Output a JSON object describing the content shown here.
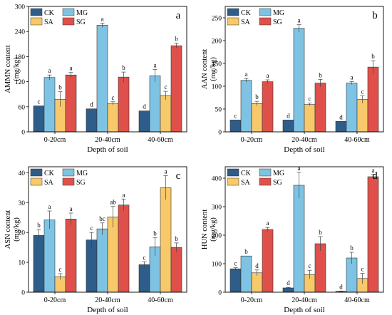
{
  "colors": {
    "CK": "#2f5d8a",
    "MG": "#7ec3e3",
    "SA": "#f7c96b",
    "SG": "#e0504a"
  },
  "chart_data": [
    {
      "type": "bar",
      "panel_letter": "a",
      "xlabel": "Depth of soil",
      "ylabel": "AMMN content",
      "ylabel_unit": "(mg/kg)",
      "categories": [
        "0-20cm",
        "20-40cm",
        "40-60cm"
      ],
      "ylim": [
        0,
        300
      ],
      "yticks": [
        0,
        60,
        120,
        180,
        240,
        300
      ],
      "legend_order": [
        "CK",
        "MG",
        "SA",
        "SG"
      ],
      "legend_position": "top-left",
      "grid": false,
      "series": [
        {
          "name": "CK",
          "values": [
            62,
            55,
            50
          ],
          "errors": [
            0,
            0,
            0
          ],
          "letters": [
            "c",
            "d",
            "d"
          ]
        },
        {
          "name": "MG",
          "values": [
            130,
            255,
            134
          ],
          "errors": [
            6,
            5,
            15
          ],
          "letters": [
            "a",
            "a",
            "a"
          ]
        },
        {
          "name": "SA",
          "values": [
            78,
            68,
            87
          ],
          "errors": [
            18,
            4,
            10
          ],
          "letters": [
            "b",
            "c",
            "c"
          ]
        },
        {
          "name": "SG",
          "values": [
            136,
            131,
            206
          ],
          "errors": [
            6,
            12,
            6
          ],
          "letters": [
            "a",
            "b",
            "b"
          ]
        }
      ]
    },
    {
      "type": "bar",
      "panel_letter": "b",
      "xlabel": "Depth of soil",
      "ylabel": "AAN content",
      "ylabel_unit": "(mg/kg)",
      "categories": [
        "0-20cm",
        "20-40cm",
        "40-60cm"
      ],
      "ylim": [
        0,
        275
      ],
      "yticks": [
        0,
        50,
        100,
        150,
        200,
        250
      ],
      "legend_order": [
        "CK",
        "MG",
        "SA",
        "SG"
      ],
      "legend_position": "top-left",
      "grid": false,
      "series": [
        {
          "name": "CK",
          "values": [
            26,
            26,
            23
          ],
          "errors": [
            0,
            0,
            0
          ],
          "letters": [
            "c",
            "d",
            "d"
          ]
        },
        {
          "name": "MG",
          "values": [
            113,
            227,
            107
          ],
          "errors": [
            4,
            8,
            3
          ],
          "letters": [
            "a",
            "a",
            "a"
          ]
        },
        {
          "name": "SA",
          "values": [
            62,
            60,
            71
          ],
          "errors": [
            5,
            3,
            8
          ],
          "letters": [
            "b",
            "c",
            "c"
          ]
        },
        {
          "name": "SG",
          "values": [
            110,
            107,
            142
          ],
          "errors": [
            4,
            8,
            14
          ],
          "letters": [
            "a",
            "b",
            "b"
          ]
        }
      ]
    },
    {
      "type": "bar",
      "panel_letter": "c",
      "xlabel": "Depth of soil",
      "ylabel": "ASN content",
      "ylabel_unit": "(mg/kg)",
      "categories": [
        "0-20cm",
        "20-40cm",
        "40-60cm"
      ],
      "ylim": [
        0,
        42
      ],
      "yticks": [
        0,
        10,
        20,
        30,
        40
      ],
      "legend_order": [
        "CK",
        "MG",
        "SA",
        "SG"
      ],
      "legend_position": "top-left",
      "grid": false,
      "series": [
        {
          "name": "CK",
          "values": [
            19,
            17.5,
            9.2
          ],
          "errors": [
            2,
            2.5,
            1
          ],
          "letters": [
            "b",
            "c",
            "c"
          ]
        },
        {
          "name": "MG",
          "values": [
            24.2,
            21.2,
            15.2
          ],
          "errors": [
            3,
            2,
            3
          ],
          "letters": [
            "a",
            "bc",
            "b"
          ]
        },
        {
          "name": "SA",
          "values": [
            5.2,
            25.2,
            35
          ],
          "errors": [
            1,
            3.5,
            4
          ],
          "letters": [
            "c",
            "ab",
            "a"
          ]
        },
        {
          "name": "SG",
          "values": [
            24.5,
            29.2,
            15
          ],
          "errors": [
            2,
            2,
            1.5
          ],
          "letters": [
            "a",
            "a",
            "b"
          ]
        }
      ]
    },
    {
      "type": "bar",
      "panel_letter": "d",
      "xlabel": "Depth of soil",
      "ylabel": "HUN content",
      "ylabel_unit": "(mg/kg)",
      "categories": [
        "0-20cm",
        "20-40cm",
        "40-60cm"
      ],
      "ylim": [
        0,
        440
      ],
      "yticks": [
        0,
        100,
        200,
        300,
        400
      ],
      "legend_order": [
        "CK",
        "MG",
        "SA",
        "SG"
      ],
      "legend_position": "top-left",
      "grid": false,
      "series": [
        {
          "name": "CK",
          "values": [
            82,
            15,
            3
          ],
          "errors": [
            4,
            2,
            1
          ],
          "letters": [
            "c",
            "d",
            "d"
          ]
        },
        {
          "name": "MG",
          "values": [
            127,
            375,
            120
          ],
          "errors": [
            0,
            45,
            20
          ],
          "letters": [
            "b",
            "a",
            "b"
          ]
        },
        {
          "name": "SA",
          "values": [
            68,
            62,
            48
          ],
          "errors": [
            10,
            15,
            18
          ],
          "letters": [
            "d",
            "c",
            "c"
          ]
        },
        {
          "name": "SG",
          "values": [
            220,
            170,
            405
          ],
          "errors": [
            7,
            25,
            8
          ],
          "letters": [
            "a",
            "b",
            "a"
          ]
        }
      ]
    }
  ]
}
